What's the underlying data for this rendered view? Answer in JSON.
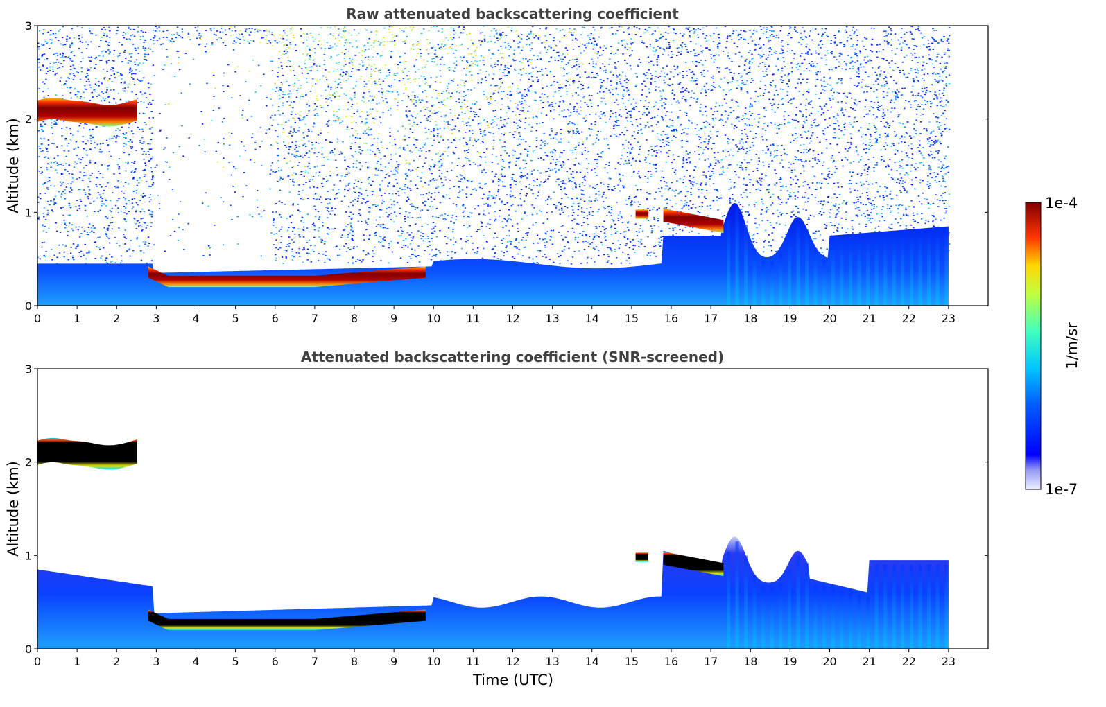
{
  "chart_data": [
    {
      "type": "heatmap",
      "title": "Raw attenuated backscattering coefficient",
      "xlabel": "",
      "ylabel": "Altitude (km)",
      "xlim": [
        0,
        24
      ],
      "ylim": [
        0,
        3
      ],
      "x_ticks": [
        "0",
        "1",
        "2",
        "3",
        "4",
        "5",
        "6",
        "7",
        "8",
        "9",
        "10",
        "11",
        "12",
        "13",
        "14",
        "15",
        "16",
        "17",
        "18",
        "19",
        "20",
        "21",
        "22",
        "23"
      ],
      "y_ticks": [
        "0",
        "1",
        "2",
        "3"
      ],
      "data_end_time": 23,
      "layers": [
        {
          "kind": "cloud",
          "x": [
            0,
            2.55
          ],
          "y": [
            1.85,
            2.22
          ],
          "level": "high"
        },
        {
          "kind": "cloud",
          "x": [
            2.8,
            9.8
          ],
          "y": [
            0.18,
            0.45
          ],
          "level": "high"
        },
        {
          "kind": "cloud",
          "x": [
            15.8,
            17.35
          ],
          "y": [
            0.75,
            1.05
          ],
          "level": "high"
        },
        {
          "kind": "aerosol",
          "x": [
            0,
            23
          ],
          "y": [
            0,
            0.45
          ],
          "level": "medium"
        },
        {
          "kind": "aerosol",
          "x": [
            17.3,
            20
          ],
          "y": [
            0,
            1.25
          ],
          "level": "medium"
        },
        {
          "kind": "noise",
          "x": [
            0,
            23
          ],
          "y": [
            0.5,
            3
          ],
          "level": "low"
        }
      ]
    },
    {
      "type": "heatmap",
      "title": "Attenuated backscattering coefficient (SNR-screened)",
      "xlabel": "Time (UTC)",
      "ylabel": "Altitude (km)",
      "xlim": [
        0,
        24
      ],
      "ylim": [
        0,
        3
      ],
      "x_ticks": [
        "0",
        "1",
        "2",
        "3",
        "4",
        "5",
        "6",
        "7",
        "8",
        "9",
        "10",
        "11",
        "12",
        "13",
        "14",
        "15",
        "16",
        "17",
        "18",
        "19",
        "20",
        "21",
        "22",
        "23"
      ],
      "y_ticks": [
        "0",
        "1",
        "2",
        "3"
      ],
      "data_end_time": 23,
      "layers": [
        {
          "kind": "cloud",
          "x": [
            0,
            2.55
          ],
          "y": [
            1.85,
            2.25
          ],
          "level": "saturated"
        },
        {
          "kind": "cloud",
          "x": [
            2.8,
            9.8
          ],
          "y": [
            0.18,
            0.45
          ],
          "level": "saturated"
        },
        {
          "kind": "cloud",
          "x": [
            15.8,
            17.35
          ],
          "y": [
            0.75,
            1.05
          ],
          "level": "saturated"
        },
        {
          "kind": "aerosol",
          "x": [
            0,
            23
          ],
          "y": [
            0,
            0.85
          ],
          "level": "medium"
        }
      ]
    }
  ],
  "colorbar": {
    "label": "1/m/sr",
    "max_label": "1e-4",
    "min_label": "1e-7",
    "colormap": "jet"
  }
}
